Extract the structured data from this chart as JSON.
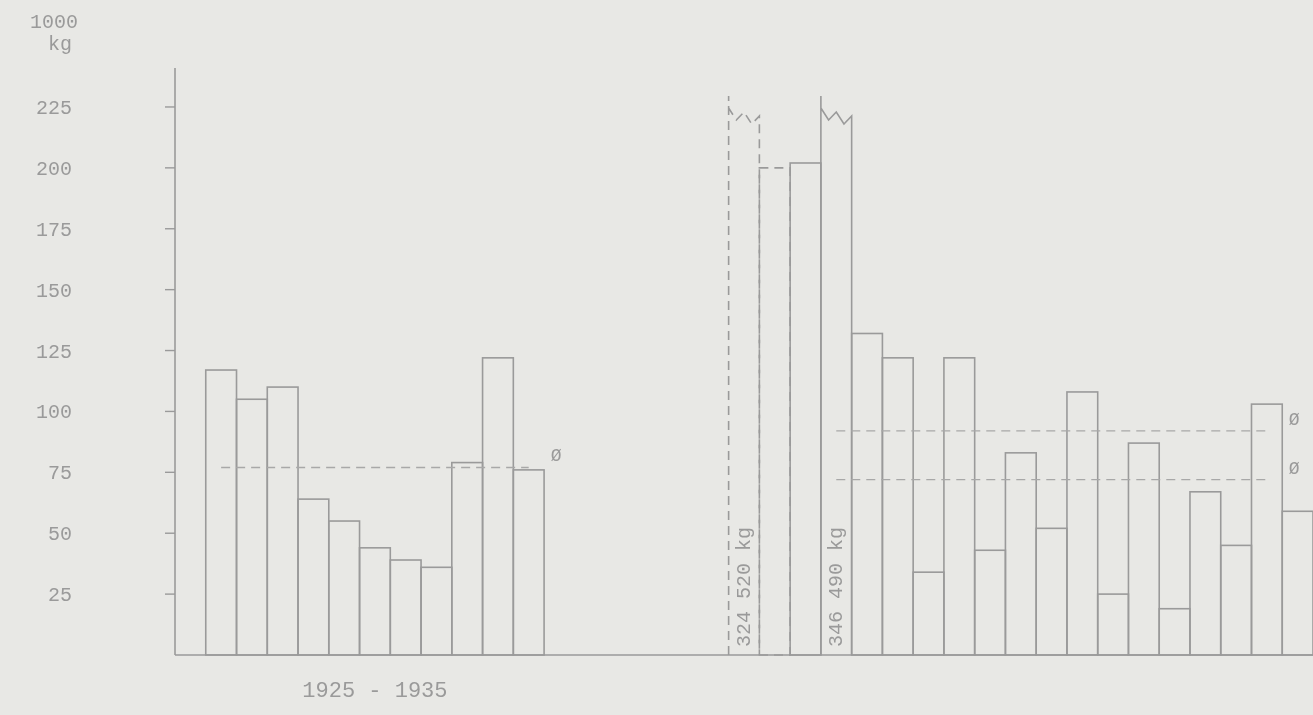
{
  "chart_data": {
    "type": "bar",
    "xlabel": "1925 - 1935",
    "ylabel": "1000 kg",
    "categories": [
      null,
      null,
      null,
      null,
      null,
      null,
      null,
      null,
      null,
      null,
      null,
      null,
      null,
      null,
      null,
      null,
      null,
      null,
      null,
      null,
      null,
      null,
      null,
      null,
      null,
      null,
      null,
      null,
      null,
      null,
      null,
      null,
      null,
      null,
      null,
      null,
      null
    ],
    "ylim": [
      0,
      241
    ],
    "yticks": [
      25,
      50,
      75,
      100,
      125,
      150,
      175,
      200,
      225
    ],
    "series": [
      {
        "color": "#9a9a9a",
        "line_style": "solid",
        "values": [
          null,
          117,
          105,
          110,
          64,
          55,
          44,
          39,
          36,
          79,
          122,
          76,
          null,
          null,
          null,
          null,
          null,
          null,
          null,
          null,
          202,
          null,
          132,
          122,
          34,
          122,
          43,
          83,
          52,
          108,
          25,
          87,
          19,
          67,
          45,
          103,
          59
        ],
        "value_labels": [
          null,
          null,
          null,
          null,
          null,
          null,
          null,
          null,
          null,
          null,
          null,
          null,
          null,
          null,
          null,
          null,
          null,
          null,
          null,
          null,
          null,
          "346 490 kg",
          null,
          null,
          null,
          null,
          null,
          null,
          null,
          null,
          null,
          null,
          null,
          null,
          null,
          null,
          null
        ]
      },
      {
        "color": "#9a9a9a",
        "line_style": "dashed",
        "values": [
          null,
          null,
          null,
          null,
          null,
          null,
          null,
          null,
          null,
          null,
          null,
          null,
          null,
          null,
          null,
          null,
          null,
          null,
          null,
          200,
          null,
          null,
          null,
          null,
          null,
          null,
          null,
          null,
          null,
          null,
          null,
          null,
          null,
          null,
          null,
          null,
          null
        ],
        "value_labels": [
          null,
          null,
          null,
          null,
          null,
          null,
          null,
          null,
          null,
          null,
          null,
          null,
          null,
          null,
          null,
          null,
          null,
          null,
          "324 520 kg",
          null,
          null,
          null,
          null,
          null,
          null,
          null,
          null,
          null,
          null,
          null,
          null,
          null,
          null,
          null,
          null,
          null,
          null
        ]
      },
      {
        "type": "line",
        "name": "Ø",
        "color": "#a8a8a8",
        "line_style": "dashed",
        "values": [
          null,
          77,
          77,
          77,
          77,
          77,
          77,
          77,
          77,
          77,
          77,
          77,
          null,
          null,
          null,
          null,
          null,
          null,
          null,
          null,
          null,
          null,
          null,
          null,
          null,
          null,
          null,
          null,
          null,
          null,
          null,
          null,
          null,
          null,
          null,
          null,
          null
        ]
      },
      {
        "type": "line",
        "name": "Ø",
        "color": "#a8a8a8",
        "line_style": "dashed",
        "values": [
          null,
          null,
          null,
          null,
          null,
          null,
          null,
          null,
          null,
          null,
          null,
          null,
          null,
          null,
          null,
          null,
          null,
          null,
          null,
          null,
          null,
          92,
          92,
          92,
          92,
          92,
          92,
          92,
          92,
          92,
          92,
          92,
          92,
          92,
          92,
          92,
          null
        ]
      },
      {
        "type": "line",
        "name": "Ø",
        "color": "#a8a8a8",
        "line_style": "dashed",
        "values": [
          null,
          null,
          null,
          null,
          null,
          null,
          null,
          null,
          null,
          null,
          null,
          null,
          null,
          null,
          null,
          null,
          null,
          null,
          null,
          null,
          null,
          72,
          72,
          72,
          72,
          72,
          72,
          72,
          72,
          72,
          72,
          72,
          72,
          72,
          72,
          72,
          null
        ]
      }
    ]
  }
}
